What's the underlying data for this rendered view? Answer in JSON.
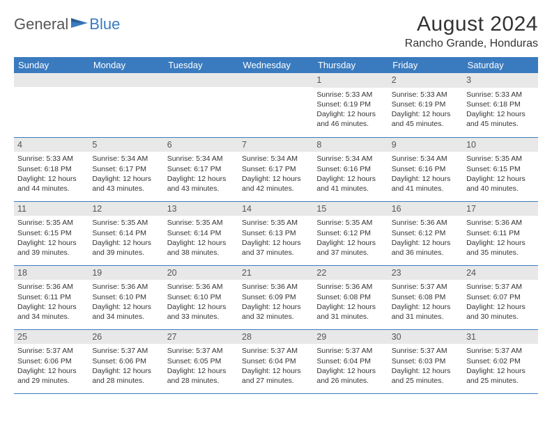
{
  "logo": {
    "general": "General",
    "blue": "Blue",
    "icon_color": "#3a7bbf"
  },
  "title": {
    "month": "August 2024",
    "location": "Rancho Grande, Honduras"
  },
  "colors": {
    "header_bg": "#3a7bbf",
    "header_text": "#ffffff",
    "daynum_bg": "#e8e8e8",
    "border": "#3a7bbf",
    "text": "#333333"
  },
  "day_names": [
    "Sunday",
    "Monday",
    "Tuesday",
    "Wednesday",
    "Thursday",
    "Friday",
    "Saturday"
  ],
  "weeks": [
    [
      null,
      null,
      null,
      null,
      {
        "n": "1",
        "sr": "5:33 AM",
        "ss": "6:19 PM",
        "dl": "12 hours and 46 minutes."
      },
      {
        "n": "2",
        "sr": "5:33 AM",
        "ss": "6:19 PM",
        "dl": "12 hours and 45 minutes."
      },
      {
        "n": "3",
        "sr": "5:33 AM",
        "ss": "6:18 PM",
        "dl": "12 hours and 45 minutes."
      }
    ],
    [
      {
        "n": "4",
        "sr": "5:33 AM",
        "ss": "6:18 PM",
        "dl": "12 hours and 44 minutes."
      },
      {
        "n": "5",
        "sr": "5:34 AM",
        "ss": "6:17 PM",
        "dl": "12 hours and 43 minutes."
      },
      {
        "n": "6",
        "sr": "5:34 AM",
        "ss": "6:17 PM",
        "dl": "12 hours and 43 minutes."
      },
      {
        "n": "7",
        "sr": "5:34 AM",
        "ss": "6:17 PM",
        "dl": "12 hours and 42 minutes."
      },
      {
        "n": "8",
        "sr": "5:34 AM",
        "ss": "6:16 PM",
        "dl": "12 hours and 41 minutes."
      },
      {
        "n": "9",
        "sr": "5:34 AM",
        "ss": "6:16 PM",
        "dl": "12 hours and 41 minutes."
      },
      {
        "n": "10",
        "sr": "5:35 AM",
        "ss": "6:15 PM",
        "dl": "12 hours and 40 minutes."
      }
    ],
    [
      {
        "n": "11",
        "sr": "5:35 AM",
        "ss": "6:15 PM",
        "dl": "12 hours and 39 minutes."
      },
      {
        "n": "12",
        "sr": "5:35 AM",
        "ss": "6:14 PM",
        "dl": "12 hours and 39 minutes."
      },
      {
        "n": "13",
        "sr": "5:35 AM",
        "ss": "6:14 PM",
        "dl": "12 hours and 38 minutes."
      },
      {
        "n": "14",
        "sr": "5:35 AM",
        "ss": "6:13 PM",
        "dl": "12 hours and 37 minutes."
      },
      {
        "n": "15",
        "sr": "5:35 AM",
        "ss": "6:12 PM",
        "dl": "12 hours and 37 minutes."
      },
      {
        "n": "16",
        "sr": "5:36 AM",
        "ss": "6:12 PM",
        "dl": "12 hours and 36 minutes."
      },
      {
        "n": "17",
        "sr": "5:36 AM",
        "ss": "6:11 PM",
        "dl": "12 hours and 35 minutes."
      }
    ],
    [
      {
        "n": "18",
        "sr": "5:36 AM",
        "ss": "6:11 PM",
        "dl": "12 hours and 34 minutes."
      },
      {
        "n": "19",
        "sr": "5:36 AM",
        "ss": "6:10 PM",
        "dl": "12 hours and 34 minutes."
      },
      {
        "n": "20",
        "sr": "5:36 AM",
        "ss": "6:10 PM",
        "dl": "12 hours and 33 minutes."
      },
      {
        "n": "21",
        "sr": "5:36 AM",
        "ss": "6:09 PM",
        "dl": "12 hours and 32 minutes."
      },
      {
        "n": "22",
        "sr": "5:36 AM",
        "ss": "6:08 PM",
        "dl": "12 hours and 31 minutes."
      },
      {
        "n": "23",
        "sr": "5:37 AM",
        "ss": "6:08 PM",
        "dl": "12 hours and 31 minutes."
      },
      {
        "n": "24",
        "sr": "5:37 AM",
        "ss": "6:07 PM",
        "dl": "12 hours and 30 minutes."
      }
    ],
    [
      {
        "n": "25",
        "sr": "5:37 AM",
        "ss": "6:06 PM",
        "dl": "12 hours and 29 minutes."
      },
      {
        "n": "26",
        "sr": "5:37 AM",
        "ss": "6:06 PM",
        "dl": "12 hours and 28 minutes."
      },
      {
        "n": "27",
        "sr": "5:37 AM",
        "ss": "6:05 PM",
        "dl": "12 hours and 28 minutes."
      },
      {
        "n": "28",
        "sr": "5:37 AM",
        "ss": "6:04 PM",
        "dl": "12 hours and 27 minutes."
      },
      {
        "n": "29",
        "sr": "5:37 AM",
        "ss": "6:04 PM",
        "dl": "12 hours and 26 minutes."
      },
      {
        "n": "30",
        "sr": "5:37 AM",
        "ss": "6:03 PM",
        "dl": "12 hours and 25 minutes."
      },
      {
        "n": "31",
        "sr": "5:37 AM",
        "ss": "6:02 PM",
        "dl": "12 hours and 25 minutes."
      }
    ]
  ],
  "labels": {
    "sunrise": "Sunrise: ",
    "sunset": "Sunset: ",
    "daylight": "Daylight: "
  }
}
